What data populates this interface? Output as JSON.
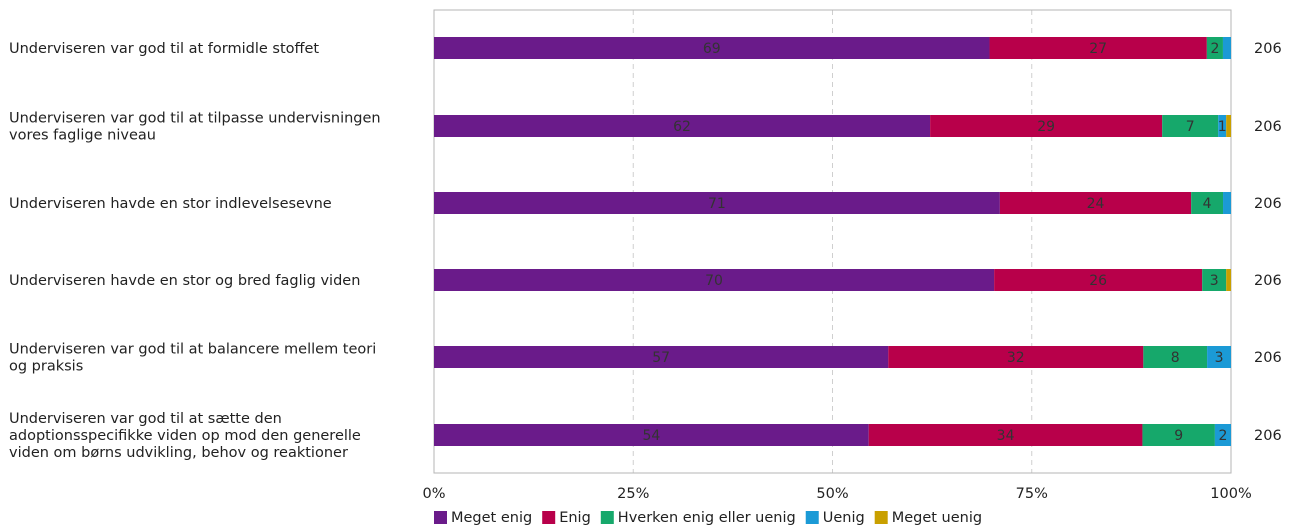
{
  "chart_data": {
    "type": "bar",
    "orientation": "horizontal",
    "stacked": true,
    "percent_stacked": true,
    "categories": [
      [
        "Underviseren var god til at formidle stoffet"
      ],
      [
        "Underviseren var god til at tilpasse undervisningen",
        "vores faglige niveau"
      ],
      [
        "Underviseren havde en stor indlevelsesevne"
      ],
      [
        "Underviseren havde en stor og bred faglig viden"
      ],
      [
        "Underviseren var god til at balancere mellem teori",
        "og praksis"
      ],
      [
        "Underviseren var god til at sætte den",
        "adoptionsspecifikke viden op mod den generelle",
        "viden om børns udvikling, behov og reaktioner"
      ]
    ],
    "series": [
      {
        "name": "Meget enig",
        "color": "#6a1b8a",
        "values": [
          69,
          62,
          71,
          70,
          57,
          54
        ]
      },
      {
        "name": "Enig",
        "color": "#b8004a",
        "values": [
          27,
          29,
          24,
          26,
          32,
          34
        ]
      },
      {
        "name": "Hverken enig eller uenig",
        "color": "#16a86b",
        "values": [
          2,
          7,
          4,
          3,
          8,
          9
        ]
      },
      {
        "name": "Uenig",
        "color": "#1b9ad6",
        "values": [
          1,
          1,
          1,
          0,
          3,
          2
        ]
      },
      {
        "name": "Meget uenig",
        "color": "#c9a000",
        "values": [
          0,
          0.6,
          0,
          0.6,
          0,
          0
        ]
      }
    ],
    "shown_labels": [
      [
        "69",
        "27",
        "2",
        "",
        ""
      ],
      [
        "62",
        "29",
        "7",
        "1",
        ""
      ],
      [
        "71",
        "24",
        "4",
        "",
        ""
      ],
      [
        "70",
        "26",
        "3",
        "",
        ""
      ],
      [
        "57",
        "32",
        "8",
        "3",
        ""
      ],
      [
        "54",
        "34",
        "9",
        "2",
        ""
      ]
    ],
    "n_values": [
      "206",
      "206",
      "206",
      "206",
      "206",
      "206"
    ],
    "xlim": [
      0,
      100
    ],
    "x_ticks": [
      "0%",
      "25%",
      "50%",
      "75%",
      "100%"
    ],
    "grid": "vertical dashed",
    "legend_position": "bottom"
  }
}
